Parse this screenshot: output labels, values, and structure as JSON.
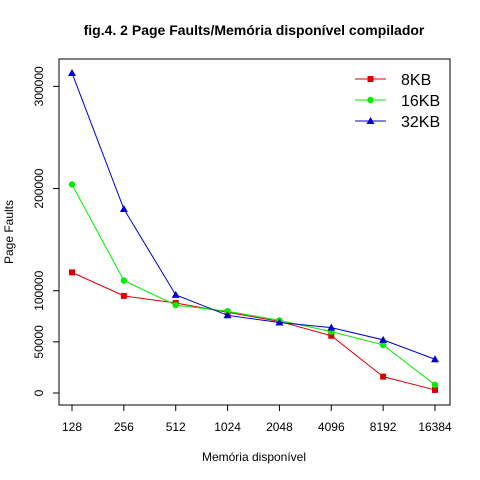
{
  "chart_data": {
    "type": "line",
    "title": "fig.4. 2 Page Faults/Memória disponível  compilador",
    "xlabel": "Memória disponível",
    "ylabel": "Page Faults",
    "categories": [
      "128",
      "256",
      "512",
      "1024",
      "2048",
      "4096",
      "8192",
      "16384"
    ],
    "ylim": [
      0,
      315000
    ],
    "yticks": [
      0,
      50000,
      100000,
      200000,
      300000
    ],
    "ytick_labels": [
      "0",
      "50000",
      "100000",
      "200000",
      "300000"
    ],
    "grid": false,
    "legend_position": "top-right",
    "series": [
      {
        "name": "8KB",
        "color": "#dd0000",
        "marker": "square",
        "values": [
          118000,
          95000,
          88000,
          79000,
          70000,
          56000,
          16000,
          3000
        ]
      },
      {
        "name": "16KB",
        "color": "#00ee00",
        "marker": "circle",
        "values": [
          204000,
          110000,
          86000,
          80000,
          71000,
          60000,
          47000,
          8000
        ]
      },
      {
        "name": "32KB",
        "color": "#0000cc",
        "marker": "triangle",
        "values": [
          313000,
          180000,
          96000,
          76000,
          69000,
          64000,
          52000,
          33000
        ]
      }
    ]
  }
}
